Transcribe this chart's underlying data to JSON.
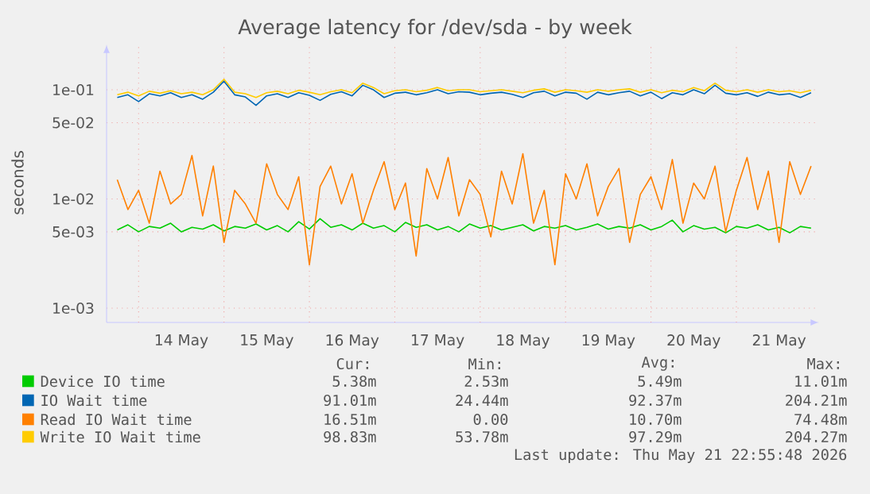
{
  "chart_data": {
    "type": "line",
    "title": "Average latency for /dev/sda - by week",
    "ylabel": "seconds",
    "log": "y",
    "grid": true,
    "legend": "bottom",
    "marker": "none",
    "line_style": "solid",
    "xlim": [
      "2026-05-13T15:00",
      "2026-05-21T23:15"
    ],
    "ylim": [
      0.00074,
      0.26
    ],
    "yticks": [
      {
        "value": 0.001,
        "label": "1e-03"
      },
      {
        "value": 0.005,
        "label": "5e-03"
      },
      {
        "value": 0.01,
        "label": "1e-02"
      },
      {
        "value": 0.05,
        "label": "5e-02"
      },
      {
        "value": 0.1,
        "label": "1e-01"
      }
    ],
    "xticks": [
      {
        "value": "2026-05-14T00:00",
        "label": null
      },
      {
        "value": "2026-05-14T12:00",
        "label": "14 May"
      },
      {
        "value": "2026-05-15T00:00",
        "label": null
      },
      {
        "value": "2026-05-15T12:00",
        "label": "15 May"
      },
      {
        "value": "2026-05-16T00:00",
        "label": null
      },
      {
        "value": "2026-05-16T12:00",
        "label": "16 May"
      },
      {
        "value": "2026-05-17T00:00",
        "label": null
      },
      {
        "value": "2026-05-17T12:00",
        "label": "17 May"
      },
      {
        "value": "2026-05-18T00:00",
        "label": null
      },
      {
        "value": "2026-05-18T12:00",
        "label": "18 May"
      },
      {
        "value": "2026-05-19T00:00",
        "label": null
      },
      {
        "value": "2026-05-19T12:00",
        "label": "19 May"
      },
      {
        "value": "2026-05-20T00:00",
        "label": null
      },
      {
        "value": "2026-05-20T12:00",
        "label": "20 May"
      },
      {
        "value": "2026-05-21T00:00",
        "label": null
      },
      {
        "value": "2026-05-21T12:00",
        "label": "21 May"
      }
    ],
    "x": [
      "2026-05-13T18:00",
      "2026-05-13T21:00",
      "2026-05-14T00:00",
      "2026-05-14T03:00",
      "2026-05-14T06:00",
      "2026-05-14T09:00",
      "2026-05-14T12:00",
      "2026-05-14T15:00",
      "2026-05-14T18:00",
      "2026-05-14T21:00",
      "2026-05-15T00:00",
      "2026-05-15T03:00",
      "2026-05-15T06:00",
      "2026-05-15T09:00",
      "2026-05-15T12:00",
      "2026-05-15T15:00",
      "2026-05-15T18:00",
      "2026-05-15T21:00",
      "2026-05-16T00:00",
      "2026-05-16T03:00",
      "2026-05-16T06:00",
      "2026-05-16T09:00",
      "2026-05-16T12:00",
      "2026-05-16T15:00",
      "2026-05-16T18:00",
      "2026-05-16T21:00",
      "2026-05-17T00:00",
      "2026-05-17T03:00",
      "2026-05-17T06:00",
      "2026-05-17T09:00",
      "2026-05-17T12:00",
      "2026-05-17T15:00",
      "2026-05-17T18:00",
      "2026-05-17T21:00",
      "2026-05-18T00:00",
      "2026-05-18T03:00",
      "2026-05-18T06:00",
      "2026-05-18T09:00",
      "2026-05-18T12:00",
      "2026-05-18T15:00",
      "2026-05-18T18:00",
      "2026-05-18T21:00",
      "2026-05-19T00:00",
      "2026-05-19T03:00",
      "2026-05-19T06:00",
      "2026-05-19T09:00",
      "2026-05-19T12:00",
      "2026-05-19T15:00",
      "2026-05-19T18:00",
      "2026-05-19T21:00",
      "2026-05-20T00:00",
      "2026-05-20T03:00",
      "2026-05-20T06:00",
      "2026-05-20T09:00",
      "2026-05-20T12:00",
      "2026-05-20T15:00",
      "2026-05-20T18:00",
      "2026-05-20T21:00",
      "2026-05-21T00:00",
      "2026-05-21T03:00",
      "2026-05-21T06:00",
      "2026-05-21T09:00",
      "2026-05-21T12:00",
      "2026-05-21T15:00",
      "2026-05-21T18:00",
      "2026-05-21T21:00"
    ],
    "series": [
      {
        "name": "Device IO time",
        "color": "#00cc00",
        "values": [
          0.0052,
          0.0058,
          0.005,
          0.0056,
          0.0054,
          0.006,
          0.005,
          0.0055,
          0.0053,
          0.0058,
          0.0051,
          0.0056,
          0.0054,
          0.0059,
          0.0052,
          0.0057,
          0.005,
          0.0062,
          0.0053,
          0.0066,
          0.0055,
          0.0058,
          0.0052,
          0.006,
          0.0054,
          0.0057,
          0.005,
          0.0061,
          0.0055,
          0.0058,
          0.0052,
          0.0056,
          0.005,
          0.0059,
          0.0054,
          0.0057,
          0.0052,
          0.0055,
          0.0058,
          0.0051,
          0.0056,
          0.0054,
          0.0057,
          0.0052,
          0.0055,
          0.0059,
          0.0053,
          0.0056,
          0.0054,
          0.0058,
          0.0052,
          0.0056,
          0.0064,
          0.005,
          0.0057,
          0.0053,
          0.0055,
          0.0049,
          0.0056,
          0.0054,
          0.0058,
          0.0052,
          0.0055,
          0.0049,
          0.0056,
          0.0054
        ]
      },
      {
        "name": "IO Wait time",
        "color": "#0066b3",
        "values": [
          0.085,
          0.09,
          0.078,
          0.092,
          0.088,
          0.094,
          0.085,
          0.09,
          0.082,
          0.095,
          0.12,
          0.09,
          0.086,
          0.072,
          0.088,
          0.092,
          0.085,
          0.094,
          0.089,
          0.08,
          0.091,
          0.096,
          0.088,
          0.11,
          0.1,
          0.085,
          0.093,
          0.095,
          0.09,
          0.094,
          0.1,
          0.092,
          0.096,
          0.095,
          0.09,
          0.093,
          0.095,
          0.091,
          0.085,
          0.094,
          0.097,
          0.088,
          0.095,
          0.093,
          0.082,
          0.095,
          0.09,
          0.094,
          0.097,
          0.088,
          0.095,
          0.083,
          0.094,
          0.09,
          0.1,
          0.092,
          0.11,
          0.093,
          0.09,
          0.094,
          0.087,
          0.095,
          0.09,
          0.092,
          0.085,
          0.094
        ]
      },
      {
        "name": "Read IO Wait time",
        "color": "#ff8000",
        "values": [
          0.015,
          0.008,
          0.012,
          0.006,
          0.018,
          0.009,
          0.011,
          0.025,
          0.007,
          0.02,
          0.004,
          0.012,
          0.009,
          0.006,
          0.021,
          0.011,
          0.008,
          0.016,
          0.0025,
          0.013,
          0.02,
          0.009,
          0.017,
          0.006,
          0.012,
          0.022,
          0.008,
          0.014,
          0.003,
          0.019,
          0.01,
          0.024,
          0.007,
          0.015,
          0.011,
          0.0045,
          0.018,
          0.009,
          0.026,
          0.006,
          0.012,
          0.0025,
          0.017,
          0.01,
          0.021,
          0.007,
          0.013,
          0.019,
          0.004,
          0.011,
          0.016,
          0.008,
          0.023,
          0.006,
          0.014,
          0.01,
          0.02,
          0.005,
          0.012,
          0.024,
          0.008,
          0.018,
          0.004,
          0.022,
          0.011,
          0.02
        ]
      },
      {
        "name": "Write IO Wait time",
        "color": "#ffcc00",
        "values": [
          0.09,
          0.095,
          0.088,
          0.097,
          0.093,
          0.098,
          0.092,
          0.095,
          0.09,
          0.1,
          0.125,
          0.095,
          0.092,
          0.085,
          0.094,
          0.097,
          0.092,
          0.099,
          0.095,
          0.09,
          0.096,
          0.1,
          0.094,
          0.115,
          0.105,
          0.092,
          0.098,
          0.1,
          0.096,
          0.099,
          0.105,
          0.098,
          0.1,
          0.1,
          0.096,
          0.098,
          0.1,
          0.097,
          0.094,
          0.099,
          0.102,
          0.095,
          0.1,
          0.098,
          0.095,
          0.1,
          0.097,
          0.1,
          0.102,
          0.095,
          0.1,
          0.094,
          0.099,
          0.096,
          0.105,
          0.098,
          0.115,
          0.099,
          0.096,
          0.1,
          0.095,
          0.1,
          0.096,
          0.098,
          0.094,
          0.099
        ]
      }
    ],
    "annotations": [
      "Cur:",
      "Min:",
      "Avg:",
      "Max:",
      "5.38m",
      "2.53m",
      "5.49m",
      "11.01m",
      "91.01m",
      "24.44m",
      "92.37m",
      "204.21m",
      "16.51m",
      "0.00",
      "10.70m",
      "74.48m",
      "98.83m",
      "53.78m",
      "97.29m",
      "204.27m",
      "Last update: Thu May 21 22:55:48 2026"
    ]
  }
}
